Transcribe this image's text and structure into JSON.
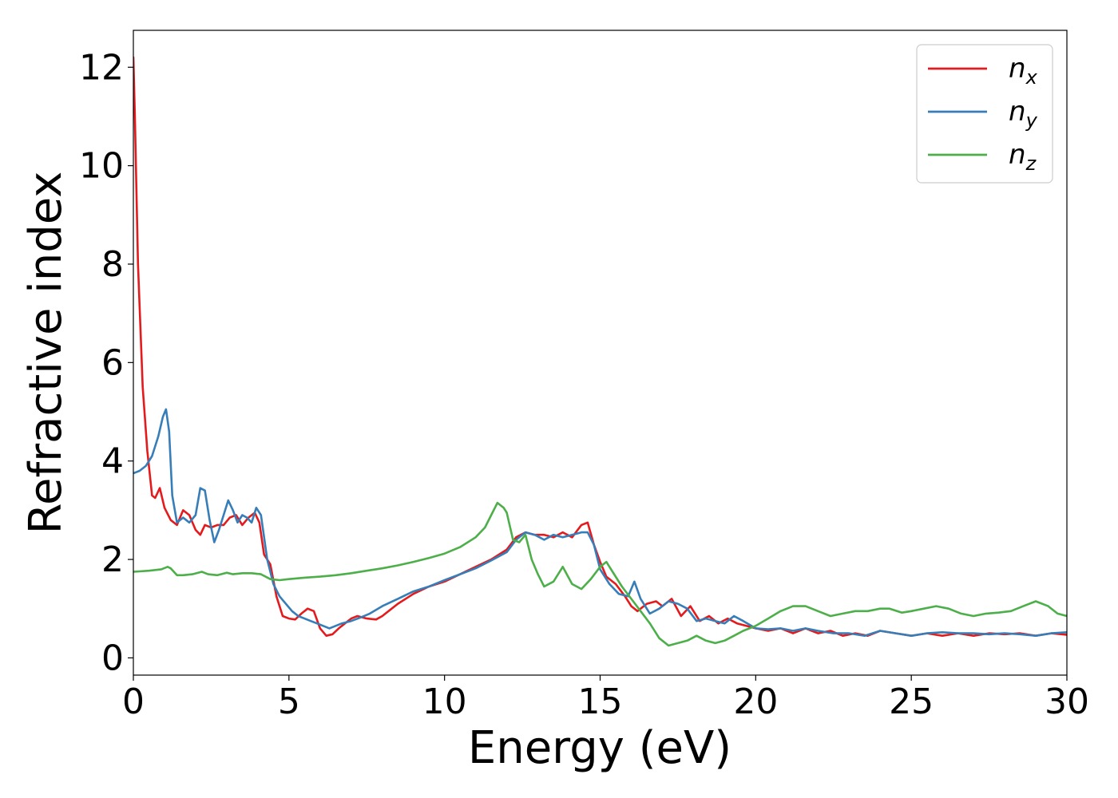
{
  "chart_data": {
    "type": "line",
    "title": "",
    "xlabel": "Energy (eV)",
    "ylabel": "Refractive index",
    "xlim": [
      0,
      30
    ],
    "ylim": [
      -0.35,
      12.75
    ],
    "xticks": [
      0,
      5,
      10,
      15,
      20,
      25,
      30
    ],
    "yticks": [
      0,
      2,
      4,
      6,
      8,
      10,
      12
    ],
    "xtick_labels": [
      "0",
      "5",
      "10",
      "15",
      "20",
      "25",
      "30"
    ],
    "ytick_labels": [
      "0",
      "2",
      "4",
      "6",
      "8",
      "10",
      "12"
    ],
    "grid": false,
    "legend_position": "top-right",
    "series": [
      {
        "name": "n_x",
        "legend_base": "n",
        "legend_sub": "x",
        "color": "#e41a1c",
        "x": [
          0,
          0.05,
          0.15,
          0.3,
          0.45,
          0.6,
          0.7,
          0.85,
          1.0,
          1.2,
          1.4,
          1.6,
          1.8,
          2.0,
          2.15,
          2.3,
          2.5,
          2.7,
          2.9,
          3.1,
          3.3,
          3.5,
          3.7,
          3.9,
          4.05,
          4.2,
          4.4,
          4.6,
          4.8,
          5.0,
          5.2,
          5.4,
          5.6,
          5.8,
          6.0,
          6.2,
          6.4,
          6.6,
          6.8,
          7.0,
          7.2,
          7.5,
          7.8,
          8.0,
          8.5,
          9.0,
          9.5,
          10.0,
          10.5,
          11.0,
          11.5,
          12.0,
          12.3,
          12.6,
          12.9,
          13.2,
          13.5,
          13.8,
          14.1,
          14.4,
          14.6,
          14.8,
          15.0,
          15.2,
          15.5,
          15.8,
          16.0,
          16.2,
          16.5,
          16.8,
          17.0,
          17.3,
          17.6,
          17.9,
          18.2,
          18.5,
          18.8,
          19.1,
          19.4,
          19.7,
          20.0,
          20.4,
          20.8,
          21.2,
          21.6,
          22.0,
          22.4,
          22.8,
          23.2,
          23.6,
          24.0,
          24.5,
          25.0,
          25.5,
          26.0,
          26.5,
          27.0,
          27.5,
          28.0,
          28.5,
          29.0,
          29.5,
          30.0
        ],
        "y": [
          12.2,
          11.0,
          8.0,
          5.5,
          4.2,
          3.3,
          3.25,
          3.45,
          3.05,
          2.8,
          2.7,
          3.0,
          2.9,
          2.6,
          2.5,
          2.7,
          2.65,
          2.7,
          2.7,
          2.85,
          2.9,
          2.7,
          2.85,
          2.95,
          2.75,
          2.1,
          1.9,
          1.25,
          0.85,
          0.8,
          0.78,
          0.9,
          1.0,
          0.95,
          0.6,
          0.45,
          0.48,
          0.6,
          0.7,
          0.8,
          0.85,
          0.8,
          0.78,
          0.85,
          1.1,
          1.3,
          1.45,
          1.55,
          1.7,
          1.85,
          2.0,
          2.2,
          2.45,
          2.55,
          2.5,
          2.5,
          2.45,
          2.55,
          2.45,
          2.7,
          2.75,
          2.3,
          1.95,
          1.65,
          1.5,
          1.25,
          1.05,
          0.95,
          1.1,
          1.15,
          1.05,
          1.2,
          0.85,
          1.05,
          0.75,
          0.85,
          0.7,
          0.8,
          0.7,
          0.65,
          0.6,
          0.55,
          0.6,
          0.5,
          0.6,
          0.5,
          0.55,
          0.45,
          0.5,
          0.45,
          0.55,
          0.5,
          0.45,
          0.5,
          0.45,
          0.5,
          0.45,
          0.5,
          0.48,
          0.5,
          0.45,
          0.5,
          0.47
        ]
      },
      {
        "name": "n_y",
        "legend_base": "n",
        "legend_sub": "y",
        "color": "#377eb8",
        "x": [
          0,
          0.2,
          0.4,
          0.6,
          0.8,
          0.95,
          1.05,
          1.15,
          1.25,
          1.4,
          1.6,
          1.8,
          2.0,
          2.15,
          2.3,
          2.45,
          2.6,
          2.75,
          2.9,
          3.05,
          3.2,
          3.35,
          3.5,
          3.65,
          3.8,
          3.95,
          4.1,
          4.3,
          4.5,
          4.7,
          4.9,
          5.1,
          5.3,
          5.5,
          5.7,
          5.9,
          6.1,
          6.3,
          6.5,
          6.7,
          7.0,
          7.3,
          7.6,
          8.0,
          8.5,
          9.0,
          9.5,
          10.0,
          10.5,
          11.0,
          11.5,
          12.0,
          12.3,
          12.6,
          12.9,
          13.2,
          13.5,
          13.8,
          14.1,
          14.4,
          14.6,
          14.8,
          15.0,
          15.3,
          15.6,
          15.9,
          16.1,
          16.3,
          16.6,
          16.9,
          17.2,
          17.5,
          17.8,
          18.1,
          18.4,
          18.7,
          19.0,
          19.3,
          19.6,
          20.0,
          20.4,
          20.8,
          21.2,
          21.6,
          22.0,
          22.5,
          23.0,
          23.5,
          24.0,
          24.5,
          25.0,
          25.5,
          26.0,
          26.5,
          27.0,
          27.5,
          28.0,
          28.5,
          29.0,
          29.5,
          30.0
        ],
        "y": [
          3.75,
          3.8,
          3.9,
          4.1,
          4.5,
          4.9,
          5.05,
          4.6,
          3.3,
          2.75,
          2.85,
          2.75,
          2.9,
          3.45,
          3.4,
          2.8,
          2.35,
          2.6,
          2.9,
          3.2,
          3.0,
          2.75,
          2.9,
          2.85,
          2.75,
          3.05,
          2.9,
          2.0,
          1.5,
          1.25,
          1.1,
          0.95,
          0.85,
          0.8,
          0.75,
          0.7,
          0.65,
          0.6,
          0.65,
          0.7,
          0.75,
          0.82,
          0.9,
          1.05,
          1.2,
          1.35,
          1.45,
          1.58,
          1.7,
          1.82,
          1.98,
          2.15,
          2.4,
          2.55,
          2.5,
          2.4,
          2.5,
          2.45,
          2.5,
          2.55,
          2.55,
          2.3,
          1.8,
          1.5,
          1.3,
          1.25,
          1.55,
          1.2,
          0.9,
          1.0,
          1.15,
          1.1,
          1.0,
          0.75,
          0.8,
          0.75,
          0.7,
          0.85,
          0.75,
          0.6,
          0.58,
          0.6,
          0.55,
          0.6,
          0.55,
          0.5,
          0.5,
          0.45,
          0.55,
          0.5,
          0.45,
          0.5,
          0.52,
          0.5,
          0.5,
          0.48,
          0.5,
          0.48,
          0.45,
          0.5,
          0.52
        ]
      },
      {
        "name": "n_z",
        "legend_base": "n",
        "legend_sub": "z",
        "color": "#4daf4a",
        "x": [
          0,
          0.5,
          0.9,
          1.1,
          1.2,
          1.4,
          1.6,
          1.9,
          2.2,
          2.4,
          2.7,
          3.0,
          3.2,
          3.5,
          3.8,
          4.1,
          4.4,
          4.7,
          5.0,
          5.5,
          6.0,
          6.5,
          7.0,
          7.5,
          8.0,
          8.5,
          9.0,
          9.5,
          10.0,
          10.5,
          11.0,
          11.3,
          11.5,
          11.7,
          11.9,
          12.0,
          12.2,
          12.4,
          12.6,
          12.8,
          13.0,
          13.2,
          13.5,
          13.8,
          14.1,
          14.4,
          14.7,
          15.0,
          15.2,
          15.4,
          15.7,
          16.0,
          16.3,
          16.6,
          16.9,
          17.2,
          17.5,
          17.8,
          18.1,
          18.4,
          18.7,
          19.0,
          19.3,
          19.6,
          20.0,
          20.4,
          20.8,
          21.2,
          21.6,
          22.0,
          22.4,
          22.8,
          23.2,
          23.6,
          24.0,
          24.3,
          24.7,
          25.0,
          25.4,
          25.8,
          26.2,
          26.6,
          27.0,
          27.4,
          27.8,
          28.2,
          28.6,
          29.0,
          29.4,
          29.7,
          30.0
        ],
        "y": [
          1.75,
          1.77,
          1.8,
          1.85,
          1.82,
          1.68,
          1.68,
          1.7,
          1.75,
          1.7,
          1.68,
          1.73,
          1.7,
          1.72,
          1.72,
          1.7,
          1.6,
          1.58,
          1.6,
          1.63,
          1.65,
          1.68,
          1.72,
          1.77,
          1.82,
          1.88,
          1.95,
          2.03,
          2.12,
          2.25,
          2.45,
          2.65,
          2.9,
          3.15,
          3.05,
          2.95,
          2.4,
          2.35,
          2.5,
          2.0,
          1.7,
          1.45,
          1.55,
          1.85,
          1.5,
          1.4,
          1.6,
          1.85,
          1.95,
          1.75,
          1.45,
          1.2,
          0.95,
          0.7,
          0.4,
          0.25,
          0.3,
          0.35,
          0.45,
          0.35,
          0.3,
          0.35,
          0.45,
          0.55,
          0.65,
          0.8,
          0.95,
          1.05,
          1.05,
          0.95,
          0.85,
          0.9,
          0.95,
          0.95,
          1.0,
          1.0,
          0.92,
          0.95,
          1.0,
          1.05,
          1.0,
          0.9,
          0.85,
          0.9,
          0.92,
          0.95,
          1.05,
          1.15,
          1.05,
          0.9,
          0.85
        ]
      }
    ]
  }
}
